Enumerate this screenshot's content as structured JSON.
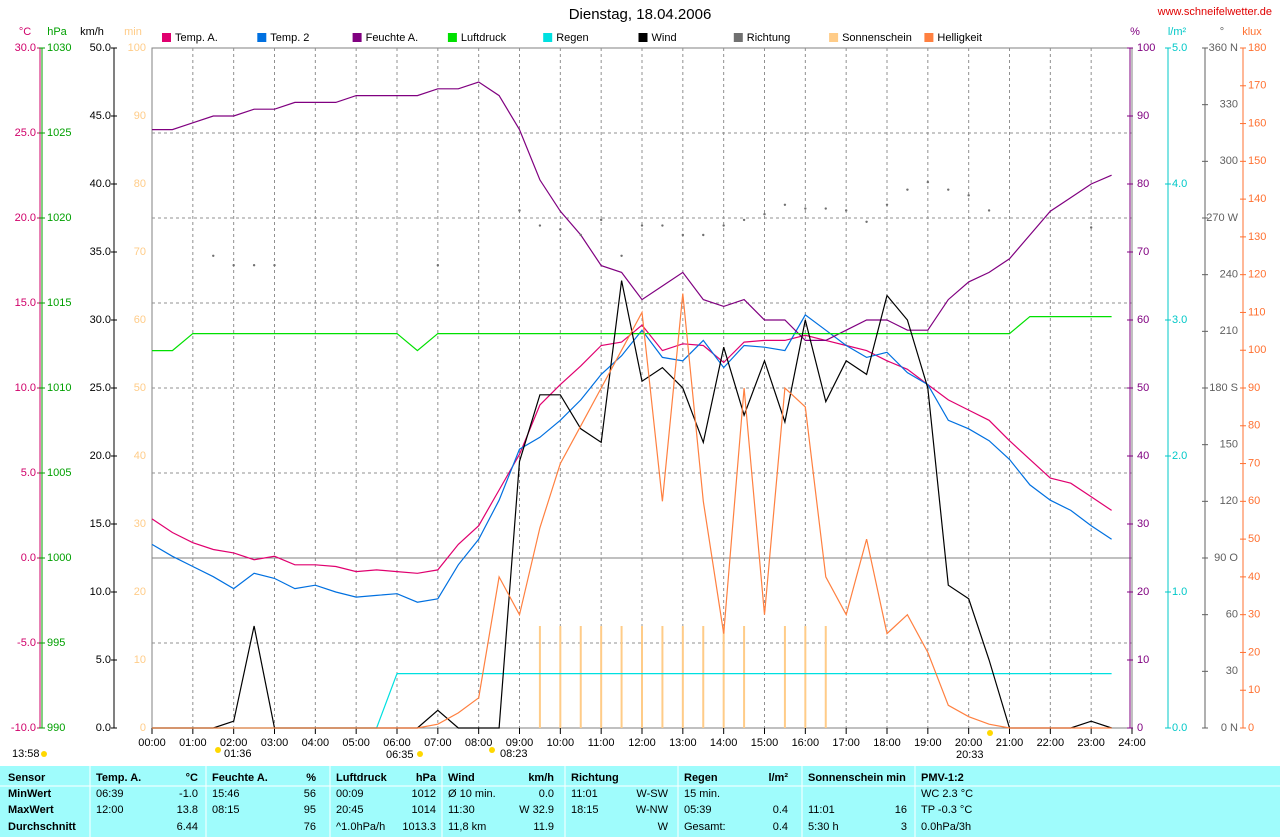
{
  "chart_data": {
    "type": "line",
    "title": "Dienstag, 18.04.2006",
    "source": "www.schneifelwetter.de",
    "annotations": [
      "13:58",
      "01:36",
      "06:35",
      "08:23",
      "20:33"
    ],
    "grid": true,
    "x": [
      0,
      0.5,
      1,
      1.5,
      2,
      2.5,
      3,
      3.5,
      4,
      4.5,
      5,
      5.5,
      6,
      6.5,
      7,
      7.5,
      8,
      8.5,
      9,
      9.5,
      10,
      10.5,
      11,
      11.5,
      12,
      12.5,
      13,
      13.5,
      14,
      14.5,
      15,
      15.5,
      16,
      16.5,
      17,
      17.5,
      18,
      18.5,
      19,
      19.5,
      20,
      20.5,
      21,
      21.5,
      22,
      22.5,
      23,
      23.5
    ],
    "xlim": [
      0,
      24
    ],
    "xticks": [
      {
        "value": 0,
        "label": "00:00"
      },
      {
        "value": 1,
        "label": "01:00"
      },
      {
        "value": 2,
        "label": "02:00"
      },
      {
        "value": 3,
        "label": "03:00"
      },
      {
        "value": 4,
        "label": "04:00"
      },
      {
        "value": 5,
        "label": "05:00"
      },
      {
        "value": 6,
        "label": "06:00"
      },
      {
        "value": 7,
        "label": "07:00"
      },
      {
        "value": 8,
        "label": "08:00"
      },
      {
        "value": 9,
        "label": "09:00"
      },
      {
        "value": 10,
        "label": "10:00"
      },
      {
        "value": 11,
        "label": "11:00"
      },
      {
        "value": 12,
        "label": "12:00"
      },
      {
        "value": 13,
        "label": "13:00"
      },
      {
        "value": 14,
        "label": "14:00"
      },
      {
        "value": 15,
        "label": "15:00"
      },
      {
        "value": 16,
        "label": "16:00"
      },
      {
        "value": 17,
        "label": "17:00"
      },
      {
        "value": 18,
        "label": "18:00"
      },
      {
        "value": 19,
        "label": "19:00"
      },
      {
        "value": 20,
        "label": "20:00"
      },
      {
        "value": 21,
        "label": "21:00"
      },
      {
        "value": 22,
        "label": "22:00"
      },
      {
        "value": 23,
        "label": "23:00"
      },
      {
        "value": 24,
        "label": "24:00"
      }
    ],
    "axes": [
      {
        "unit": "°C",
        "color": "#d0006a",
        "lim": [
          -10,
          30
        ],
        "ticks": [
          {
            "value": -10,
            "label": "-10.0"
          },
          {
            "value": -5,
            "label": "-5.0"
          },
          {
            "value": 0,
            "label": "0.0"
          },
          {
            "value": 5,
            "label": "5.0"
          },
          {
            "value": 10,
            "label": "10.0"
          },
          {
            "value": 15,
            "label": "15.0"
          },
          {
            "value": 20,
            "label": "20.0"
          },
          {
            "value": 25,
            "label": "25.0"
          },
          {
            "value": 30,
            "label": "30.0"
          }
        ]
      },
      {
        "unit": "hPa",
        "color": "#00a000",
        "lim": [
          990,
          1030
        ],
        "ticks": [
          990,
          995,
          1000,
          1005,
          1010,
          1015,
          1020,
          1025,
          1030
        ]
      },
      {
        "unit": "km/h",
        "color": "#000000",
        "lim": [
          0,
          50
        ],
        "ticks": [
          {
            "value": 0,
            "label": "0.0"
          },
          {
            "value": 5,
            "label": "5.0"
          },
          {
            "value": 10,
            "label": "10.0"
          },
          {
            "value": 15,
            "label": "15.0"
          },
          {
            "value": 20,
            "label": "20.0"
          },
          {
            "value": 25,
            "label": "25.0"
          },
          {
            "value": 30,
            "label": "30.0"
          },
          {
            "value": 35,
            "label": "35.0"
          },
          {
            "value": 40,
            "label": "40.0"
          },
          {
            "value": 45,
            "label": "45.0"
          },
          {
            "value": 50,
            "label": "50.0"
          }
        ]
      },
      {
        "unit": "min",
        "color": "#ffcc88",
        "lim": [
          0,
          100
        ],
        "ticks": [
          0,
          10,
          20,
          30,
          40,
          50,
          60,
          70,
          80,
          90,
          100
        ]
      },
      {
        "unit": "%",
        "color": "#800080",
        "lim": [
          0,
          100
        ],
        "ticks": [
          0,
          10,
          20,
          30,
          40,
          50,
          60,
          70,
          80,
          90,
          100
        ]
      },
      {
        "unit": "l/m²",
        "color": "#00c8c8",
        "lim": [
          0,
          5
        ],
        "ticks": [
          {
            "value": 0,
            "label": "0.0"
          },
          {
            "value": 1,
            "label": "1.0"
          },
          {
            "value": 2,
            "label": "2.0"
          },
          {
            "value": 3,
            "label": "3.0"
          },
          {
            "value": 4,
            "label": "4.0"
          },
          {
            "value": 5,
            "label": "5.0"
          }
        ]
      },
      {
        "unit": "°",
        "color": "#606060",
        "lim": [
          0,
          360
        ],
        "ticks": [
          {
            "value": 0,
            "label": "0 N"
          },
          30,
          60,
          {
            "value": 90,
            "label": "90 O"
          },
          120,
          150,
          {
            "value": 180,
            "label": "180 S"
          },
          210,
          240,
          {
            "value": 270,
            "label": "270 W"
          },
          300,
          330,
          {
            "value": 360,
            "label": "360 N"
          }
        ]
      },
      {
        "unit": "klux",
        "color": "#ff7030",
        "lim": [
          0,
          180
        ],
        "ticks": [
          0,
          10,
          20,
          30,
          40,
          50,
          60,
          70,
          80,
          90,
          100,
          110,
          120,
          130,
          140,
          150,
          160,
          170,
          180
        ]
      }
    ],
    "series": [
      {
        "name": "Temp. A.",
        "color": "#e0006f",
        "axis": 0,
        "style": "line",
        "values": [
          2.3,
          1.5,
          0.9,
          0.5,
          0.3,
          -0.1,
          0.1,
          -0.4,
          -0.4,
          -0.5,
          -0.8,
          -0.7,
          -0.8,
          -0.9,
          -0.7,
          0.8,
          1.9,
          4.0,
          6.1,
          9.0,
          10.2,
          11.3,
          12.5,
          12.7,
          13.7,
          12.2,
          12.6,
          12.5,
          11.5,
          12.7,
          12.8,
          12.8,
          13.1,
          12.8,
          12.5,
          12.2,
          11.6,
          11.1,
          10.2,
          9.3,
          8.7,
          8.1,
          6.9,
          5.8,
          4.7,
          4.4,
          3.6,
          2.8
        ]
      },
      {
        "name": "Temp. 2",
        "color": "#0070e0",
        "axis": 0,
        "style": "line",
        "values": [
          0.8,
          0.1,
          -0.5,
          -1.1,
          -1.8,
          -0.9,
          -1.2,
          -1.8,
          -1.6,
          -2.0,
          -2.3,
          -2.2,
          -2.1,
          -2.6,
          -2.4,
          -0.4,
          1.1,
          3.4,
          6.4,
          7.1,
          8.1,
          9.3,
          10.8,
          11.9,
          13.4,
          11.8,
          11.6,
          12.8,
          11.2,
          12.5,
          12.4,
          12.2,
          14.3,
          13.4,
          12.5,
          11.8,
          12.1,
          10.9,
          10.2,
          8.1,
          7.6,
          6.9,
          5.8,
          4.3,
          3.4,
          2.8,
          1.9,
          1.1
        ]
      },
      {
        "name": "Feuchte A.",
        "color": "#800080",
        "axis": 4,
        "style": "line",
        "values": [
          88,
          88,
          89,
          90,
          90,
          91,
          91,
          92,
          92,
          92,
          93,
          93,
          93,
          93,
          94,
          94,
          95,
          93,
          88,
          80.6,
          76,
          72.5,
          68,
          67,
          63,
          65,
          67,
          63,
          62,
          63,
          60,
          60,
          57,
          57,
          58.5,
          60,
          60,
          58.5,
          58.5,
          63,
          65.6,
          67,
          69,
          72.5,
          76,
          78,
          80,
          81.3
        ]
      },
      {
        "name": "Luftdruck",
        "color": "#00e000",
        "axis": 1,
        "style": "line",
        "values": [
          1012.2,
          1012.2,
          1013.2,
          1013.2,
          1013.2,
          1013.2,
          1013.2,
          1013.2,
          1013.2,
          1013.2,
          1013.2,
          1013.2,
          1013.2,
          1012.2,
          1013.2,
          1013.2,
          1013.2,
          1013.2,
          1013.2,
          1013.2,
          1013.2,
          1013.2,
          1013.2,
          1013.2,
          1013.2,
          1013.2,
          1013.2,
          1013.2,
          1013.2,
          1013.2,
          1013.2,
          1013.2,
          1013.2,
          1013.2,
          1013.2,
          1013.2,
          1013.2,
          1013.2,
          1013.2,
          1013.2,
          1013.2,
          1013.2,
          1013.2,
          1014.2,
          1014.2,
          1014.2,
          1014.2,
          1014.2
        ]
      },
      {
        "name": "Regen",
        "color": "#00e0e0",
        "axis": 5,
        "style": "line",
        "values": [
          0,
          0,
          0,
          0,
          0,
          0,
          0,
          0,
          0,
          0,
          0,
          0,
          0.4,
          0.4,
          0.4,
          0.4,
          0.4,
          0.4,
          0.4,
          0.4,
          0.4,
          0.4,
          0.4,
          0.4,
          0.4,
          0.4,
          0.4,
          0.4,
          0.4,
          0.4,
          0.4,
          0.4,
          0.4,
          0.4,
          0.4,
          0.4,
          0.4,
          0.4,
          0.4,
          0.4,
          0.4,
          0.4,
          0.4,
          0.4,
          0.4,
          0.4,
          0.4,
          0.4
        ]
      },
      {
        "name": "Wind",
        "color": "#000000",
        "axis": 2,
        "style": "line",
        "values": [
          0,
          0,
          0,
          0,
          0.5,
          7.5,
          0,
          0,
          0,
          0,
          0,
          0,
          0,
          0,
          1.3,
          0,
          0,
          0,
          19.6,
          24.5,
          24.5,
          22,
          21,
          32.9,
          25.5,
          26.5,
          25,
          21,
          28,
          23,
          27,
          22.5,
          30,
          24,
          27,
          26,
          31.8,
          30,
          25,
          10.5,
          9.5,
          5,
          0,
          0,
          0,
          0,
          0.5,
          0
        ]
      },
      {
        "name": "Richtung",
        "color": "#707070",
        "axis": 6,
        "style": "dots",
        "values": [
          null,
          null,
          null,
          250,
          245,
          245,
          245,
          null,
          null,
          null,
          null,
          null,
          null,
          null,
          245,
          null,
          null,
          null,
          274,
          266,
          264,
          261,
          269,
          250,
          266,
          266,
          261,
          261,
          266,
          269,
          272,
          277,
          275,
          275,
          274,
          268,
          277,
          285,
          289,
          285,
          282,
          274,
          null,
          null,
          null,
          null,
          265,
          null
        ]
      },
      {
        "name": "Sonnenschein",
        "color": "#ffcc88",
        "axis": 3,
        "style": "bars",
        "values": [
          0,
          0,
          0,
          0,
          0,
          0,
          0,
          0,
          0,
          0,
          0,
          0,
          0,
          0,
          0,
          0,
          0,
          0,
          0,
          15,
          15,
          15,
          15,
          15,
          15,
          15,
          15,
          15,
          15,
          15,
          0,
          15,
          15,
          15,
          0,
          0,
          0,
          0,
          0,
          0,
          0,
          0,
          0,
          0,
          0,
          0,
          0,
          0
        ]
      },
      {
        "name": "Helligkeit",
        "color": "#ff8040",
        "axis": 7,
        "style": "line",
        "values": [
          0,
          0,
          0,
          0,
          0,
          0,
          0,
          0,
          0,
          0,
          0,
          0,
          0,
          0,
          1,
          4,
          8,
          40,
          30,
          53,
          70,
          80,
          90,
          100,
          110,
          60,
          115,
          60,
          25,
          90,
          30,
          90,
          85,
          40,
          30,
          50,
          25,
          30,
          20,
          6,
          3,
          1,
          0,
          0,
          0,
          0,
          0,
          0
        ]
      }
    ]
  },
  "stats": {
    "columns": [
      {
        "header": "Sensor",
        "rows": [
          {
            "left": "MinWert"
          },
          {
            "left": "MaxWert"
          },
          {
            "left": "Durchschnitt"
          }
        ]
      },
      {
        "header": "Temp. A.",
        "unit": "°C",
        "rows": [
          {
            "left": "06:39",
            "right": "-1.0"
          },
          {
            "left": "12:00",
            "right": "13.8"
          },
          {
            "right": "6.44"
          }
        ]
      },
      {
        "header": "Feuchte A.",
        "unit": "%",
        "rows": [
          {
            "left": "15:46",
            "right": "56"
          },
          {
            "left": "08:15",
            "right": "95"
          },
          {
            "right": "76"
          }
        ]
      },
      {
        "header": "Luftdruck",
        "unit": "hPa",
        "rows": [
          {
            "left": "00:09",
            "right": "1012"
          },
          {
            "left": "20:45",
            "right": "1014"
          },
          {
            "left": "^1.0hPa/h",
            "right": "1013.3"
          }
        ]
      },
      {
        "header": "Wind",
        "unit": "km/h",
        "rows": [
          {
            "left": "Ø 10 min.",
            "right": "0.0"
          },
          {
            "left": "11:30",
            "right": "W 32.9"
          },
          {
            "left": "11,8 km",
            "right": "11.9"
          }
        ]
      },
      {
        "header": "Richtung",
        "rows": [
          {
            "left": "11:01",
            "right": "W-SW"
          },
          {
            "left": "18:15",
            "right": "W-NW"
          },
          {
            "right": "W"
          }
        ]
      },
      {
        "header": "Regen",
        "unit": "l/m²",
        "rows": [
          {
            "left": "15 min."
          },
          {
            "left": "05:39",
            "right": "0.4"
          },
          {
            "left": "Gesamt:",
            "right": "0.4"
          }
        ]
      },
      {
        "header": "Sonnenschein min",
        "rows": [
          {},
          {
            "left": "11:01",
            "right": "16"
          },
          {
            "left": "5:30 h",
            "right": "3"
          }
        ]
      },
      {
        "header": "PMV-1:2",
        "rows": [
          {
            "left": "WC 2.3 °C"
          },
          {
            "left": "TP -0.3 °C"
          },
          {
            "left": "0.0hPa/3h"
          }
        ]
      }
    ]
  }
}
